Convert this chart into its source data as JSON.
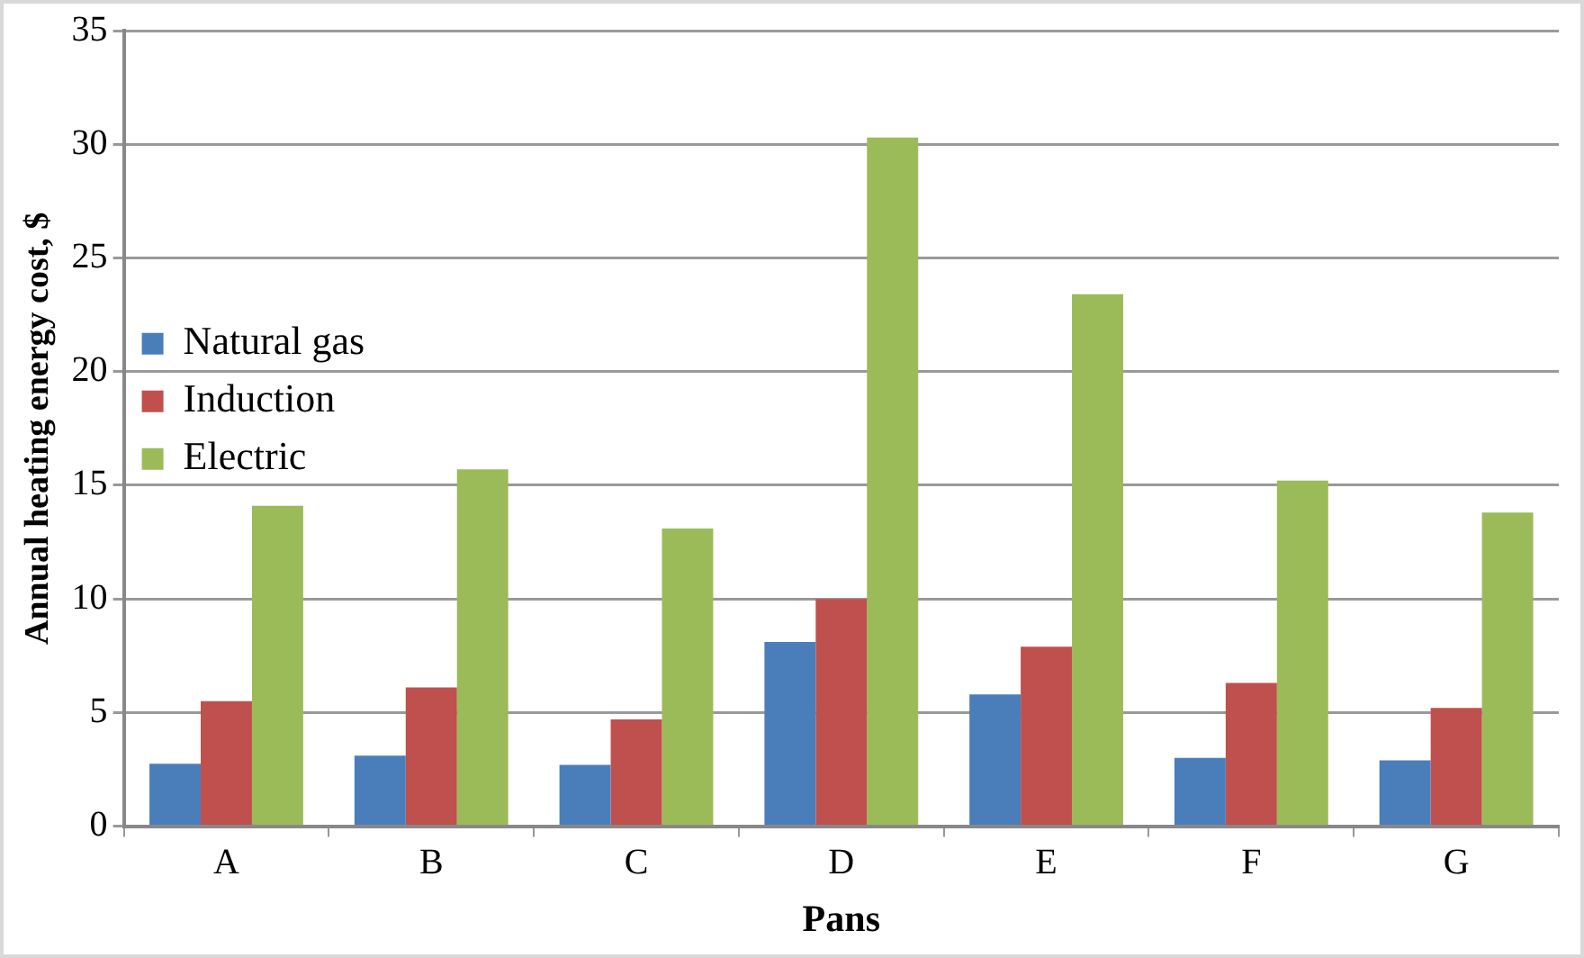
{
  "chart_data": {
    "type": "bar",
    "xlabel": "Pans",
    "ylabel": "Annual heating energy cost, $",
    "categories": [
      "A",
      "B",
      "C",
      "D",
      "E",
      "F",
      "G"
    ],
    "series": [
      {
        "name": "Natural gas",
        "color": "#4a7ebb",
        "values": [
          2.75,
          3.1,
          2.7,
          8.1,
          5.8,
          3.0,
          2.9
        ]
      },
      {
        "name": "Induction",
        "color": "#c0504d",
        "values": [
          5.5,
          6.1,
          4.7,
          10,
          7.9,
          6.3,
          5.2
        ]
      },
      {
        "name": "Electric",
        "color": "#9bbb59",
        "values": [
          14.1,
          15.7,
          13.1,
          30.3,
          23.4,
          15.2,
          13.8
        ]
      }
    ],
    "ylim": [
      0,
      35
    ],
    "yticks": [
      0,
      5,
      10,
      15,
      20,
      25,
      30,
      35
    ],
    "grid": "y",
    "legend": "top"
  }
}
